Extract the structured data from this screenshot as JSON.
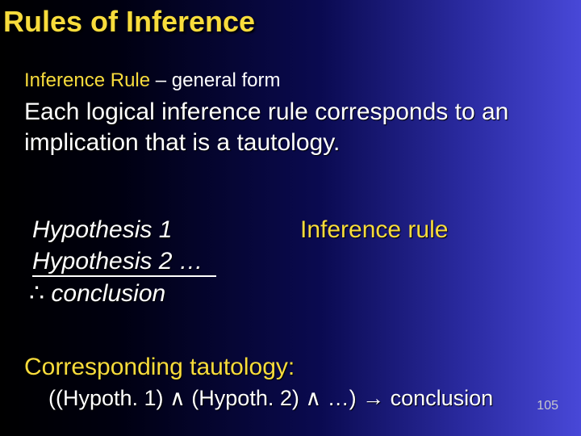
{
  "title": "Rules of Inference",
  "subtitle_gold": "Inference Rule",
  "subtitle_rest": " – general form",
  "body1": "Each logical inference rule corresponds to an implication that is a tautology.",
  "hyp1": "Hypothesis 1",
  "hyp2": "Hypothesis 2 …",
  "therefore": "∴",
  "conclusion_word": " conclusion",
  "inference_rule_label": "Inference rule",
  "corresponding": "Corresponding tautology:",
  "tautology": "((Hypoth. 1) ∧ (Hypoth. 2) ∧ …) → conclusion",
  "page_number": "105",
  "colors": {
    "title_color": "#f8dc3c",
    "text_color": "#ffffff",
    "bg_gradient_start": "#000000",
    "bg_gradient_end": "#4848d8"
  },
  "fonts": {
    "family": "Comic Sans MS",
    "title_size_pt": 36,
    "body_size_pt": 30,
    "subtitle_size_pt": 24,
    "taut_size_pt": 27
  }
}
